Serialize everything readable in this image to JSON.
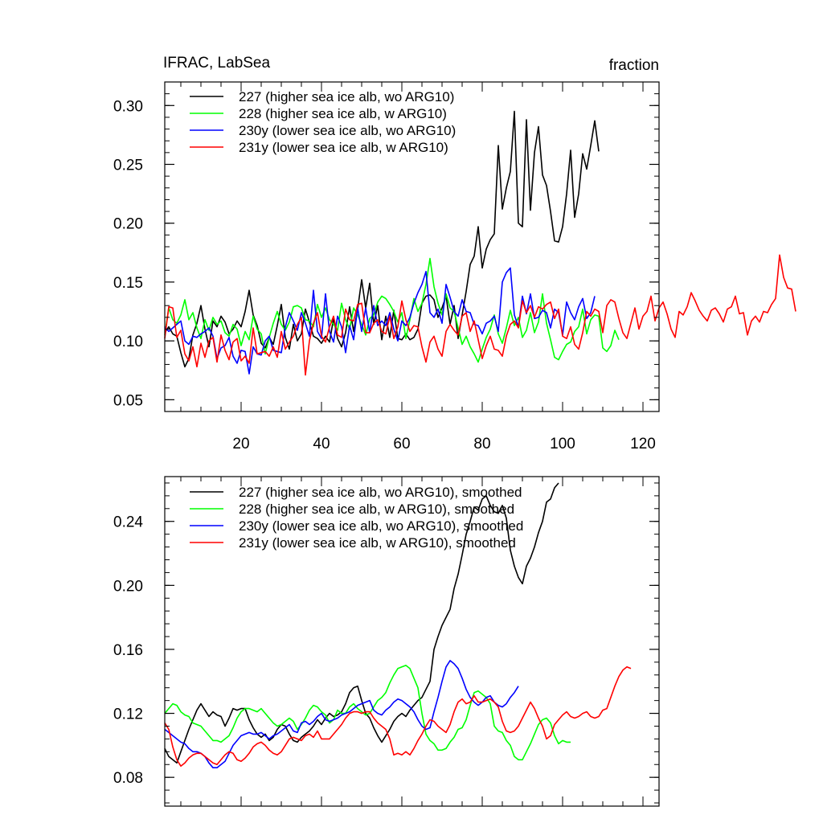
{
  "chart_data": [
    {
      "type": "line",
      "title": "IFRAC, LabSea",
      "units": "fraction",
      "xlim": [
        1,
        124
      ],
      "ylim": [
        0.04,
        0.32
      ],
      "xticks": [
        20,
        40,
        60,
        80,
        100,
        120
      ],
      "xtick_labels": [
        "20",
        "40",
        "60",
        "80",
        "100",
        "120"
      ],
      "yticks": [
        0.05,
        0.1,
        0.15,
        0.2,
        0.25,
        0.3
      ],
      "ytick_labels": [
        "0.05",
        "0.10",
        "0.15",
        "0.20",
        "0.25",
        "0.30"
      ],
      "legend_position": "top-left",
      "series": [
        {
          "name": "227 (higher sea ice alb, wo ARG10)",
          "color": "#000000",
          "x_start": 1,
          "values": [
            0.107,
            0.112,
            0.106,
            0.104,
            0.09,
            0.078,
            0.085,
            0.105,
            0.115,
            0.13,
            0.11,
            0.095,
            0.117,
            0.112,
            0.121,
            0.116,
            0.106,
            0.11,
            0.117,
            0.112,
            0.125,
            0.143,
            0.122,
            0.113,
            0.098,
            0.094,
            0.103,
            0.097,
            0.113,
            0.131,
            0.103,
            0.093,
            0.114,
            0.1,
            0.106,
            0.127,
            0.116,
            0.104,
            0.102,
            0.098,
            0.104,
            0.099,
            0.119,
            0.102,
            0.095,
            0.107,
            0.129,
            0.108,
            0.127,
            0.152,
            0.128,
            0.149,
            0.114,
            0.13,
            0.101,
            0.121,
            0.103,
            0.126,
            0.102,
            0.101,
            0.106,
            0.101,
            0.103,
            0.11,
            0.132,
            0.138,
            0.139,
            0.135,
            0.12,
            0.128,
            0.138,
            0.114,
            0.13,
            0.102,
            0.122,
            0.142,
            0.165,
            0.172,
            0.197,
            0.162,
            0.178,
            0.186,
            0.191,
            0.266,
            0.212,
            0.23,
            0.244,
            0.295,
            0.2,
            0.197,
            0.288,
            0.211,
            0.26,
            0.282,
            0.241,
            0.232,
            0.21,
            0.185,
            0.184,
            0.197,
            0.225,
            0.262,
            0.205,
            0.225,
            0.259,
            0.246,
            0.266,
            0.287,
            0.261
          ]
        },
        {
          "name": "228 (higher sea ice alb, w ARG10)",
          "color": "#00ff00",
          "x_start": 1,
          "values": [
            0.105,
            0.128,
            0.118,
            0.115,
            0.122,
            0.135,
            0.118,
            0.124,
            0.111,
            0.102,
            0.118,
            0.109,
            0.12,
            0.114,
            0.117,
            0.107,
            0.104,
            0.114,
            0.11,
            0.096,
            0.108,
            0.101,
            0.121,
            0.11,
            0.106,
            0.089,
            0.103,
            0.115,
            0.125,
            0.114,
            0.109,
            0.116,
            0.129,
            0.13,
            0.128,
            0.118,
            0.117,
            0.112,
            0.131,
            0.12,
            0.128,
            0.118,
            0.114,
            0.109,
            0.132,
            0.118,
            0.11,
            0.128,
            0.122,
            0.114,
            0.105,
            0.119,
            0.122,
            0.133,
            0.138,
            0.136,
            0.131,
            0.125,
            0.116,
            0.124,
            0.102,
            0.118,
            0.136,
            0.125,
            0.132,
            0.148,
            0.17,
            0.146,
            0.132,
            0.122,
            0.14,
            0.128,
            0.125,
            0.111,
            0.097,
            0.104,
            0.095,
            0.089,
            0.082,
            0.093,
            0.103,
            0.11,
            0.122,
            0.106,
            0.098,
            0.111,
            0.126,
            0.113,
            0.12,
            0.103,
            0.109,
            0.124,
            0.107,
            0.116,
            0.14,
            0.115,
            0.101,
            0.086,
            0.084,
            0.091,
            0.097,
            0.099,
            0.108,
            0.112,
            0.127,
            0.106,
            0.118,
            0.122,
            0.121,
            0.094,
            0.091,
            0.096,
            0.109,
            0.101
          ]
        },
        {
          "name": "230y (lower sea ice alb, wo ARG10)",
          "color": "#0000ff",
          "x_start": 1,
          "values": [
            0.112,
            0.108,
            0.111,
            0.114,
            0.117,
            0.1,
            0.097,
            0.104,
            0.103,
            0.106,
            0.108,
            0.111,
            0.104,
            0.085,
            0.094,
            0.096,
            0.103,
            0.087,
            0.081,
            0.092,
            0.091,
            0.072,
            0.095,
            0.089,
            0.088,
            0.1,
            0.104,
            0.092,
            0.091,
            0.09,
            0.112,
            0.124,
            0.117,
            0.109,
            0.124,
            0.115,
            0.104,
            0.143,
            0.108,
            0.102,
            0.14,
            0.108,
            0.099,
            0.121,
            0.112,
            0.09,
            0.113,
            0.101,
            0.128,
            0.108,
            0.128,
            0.107,
            0.13,
            0.113,
            0.117,
            0.113,
            0.124,
            0.11,
            0.1,
            0.117,
            0.113,
            0.12,
            0.132,
            0.141,
            0.148,
            0.159,
            0.124,
            0.12,
            0.127,
            0.115,
            0.148,
            0.137,
            0.125,
            0.121,
            0.135,
            0.125,
            0.124,
            0.114,
            0.113,
            0.106,
            0.115,
            0.117,
            0.121,
            0.108,
            0.15,
            0.158,
            0.162,
            0.122,
            0.112,
            0.138,
            0.123,
            0.14,
            0.119,
            0.12,
            0.126,
            0.124,
            0.111,
            0.127,
            0.124,
            0.105,
            0.133,
            0.124,
            0.118,
            0.129,
            0.136,
            0.119,
            0.124,
            0.138
          ]
        },
        {
          "name": "231y (lower sea ice alb, w ARG10)",
          "color": "#ff0000",
          "x_start": 1,
          "values": [
            0.102,
            0.129,
            0.128,
            0.103,
            0.109,
            0.089,
            0.083,
            0.095,
            0.078,
            0.098,
            0.086,
            0.1,
            0.103,
            0.082,
            0.105,
            0.092,
            0.084,
            0.099,
            0.102,
            0.083,
            0.087,
            0.081,
            0.111,
            0.089,
            0.09,
            0.091,
            0.087,
            0.095,
            0.086,
            0.108,
            0.093,
            0.099,
            0.104,
            0.114,
            0.12,
            0.071,
            0.1,
            0.115,
            0.124,
            0.104,
            0.099,
            0.112,
            0.121,
            0.105,
            0.103,
            0.127,
            0.118,
            0.117,
            0.131,
            0.132,
            0.107,
            0.107,
            0.115,
            0.118,
            0.108,
            0.106,
            0.121,
            0.102,
            0.112,
            0.134,
            0.118,
            0.108,
            0.113,
            0.112,
            0.095,
            0.082,
            0.099,
            0.104,
            0.093,
            0.087,
            0.108,
            0.114,
            0.109,
            0.105,
            0.121,
            0.124,
            0.108,
            0.117,
            0.101,
            0.085,
            0.096,
            0.104,
            0.093,
            0.092,
            0.087,
            0.104,
            0.114,
            0.117,
            0.111,
            0.134,
            0.124,
            0.13,
            0.12,
            0.129,
            0.127,
            0.131,
            0.133,
            0.119,
            0.127,
            0.104,
            0.102,
            0.112,
            0.097,
            0.093,
            0.107,
            0.125,
            0.121,
            0.127,
            0.125,
            0.107,
            0.13,
            0.135,
            0.133,
            0.119,
            0.107,
            0.102,
            0.115,
            0.128,
            0.11,
            0.121,
            0.125,
            0.138,
            0.117,
            0.128,
            0.133,
            0.123,
            0.11,
            0.103,
            0.125,
            0.122,
            0.129,
            0.141,
            0.134,
            0.126,
            0.121,
            0.117,
            0.126,
            0.128,
            0.123,
            0.116,
            0.127,
            0.129,
            0.138,
            0.123,
            0.124,
            0.105,
            0.117,
            0.121,
            0.116,
            0.125,
            0.124,
            0.131,
            0.136,
            0.173,
            0.154,
            0.145,
            0.144,
            0.125
          ]
        }
      ]
    },
    {
      "type": "line",
      "title": "",
      "xlim": [
        1,
        124
      ],
      "ylim": [
        0.062,
        0.268
      ],
      "xticks": [
        20,
        40,
        60,
        80,
        100,
        120
      ],
      "xtick_labels": [],
      "yticks": [
        0.08,
        0.12,
        0.16,
        0.2,
        0.24
      ],
      "ytick_labels": [
        "0.08",
        "0.12",
        "0.16",
        "0.20",
        "0.24"
      ],
      "legend_position": "top-left",
      "series": [
        {
          "name": "227 (higher sea ice alb, wo ARG10), smoothed",
          "color": "#000000",
          "x_start": 1,
          "values": [
            0.098,
            0.093,
            0.091,
            0.089,
            0.096,
            0.103,
            0.11,
            0.116,
            0.122,
            0.126,
            0.122,
            0.118,
            0.121,
            0.119,
            0.118,
            0.112,
            0.117,
            0.123,
            0.122,
            0.123,
            0.123,
            0.116,
            0.111,
            0.107,
            0.105,
            0.107,
            0.103,
            0.105,
            0.11,
            0.113,
            0.112,
            0.107,
            0.103,
            0.102,
            0.105,
            0.107,
            0.109,
            0.112,
            0.116,
            0.113,
            0.117,
            0.12,
            0.118,
            0.119,
            0.121,
            0.126,
            0.133,
            0.136,
            0.137,
            0.128,
            0.12,
            0.117,
            0.111,
            0.106,
            0.102,
            0.106,
            0.11,
            0.115,
            0.118,
            0.12,
            0.118,
            0.122,
            0.125,
            0.128,
            0.13,
            0.135,
            0.14,
            0.16,
            0.168,
            0.175,
            0.18,
            0.185,
            0.198,
            0.207,
            0.219,
            0.232,
            0.24,
            0.249,
            0.247,
            0.254,
            0.256,
            0.25,
            0.246,
            0.245,
            0.25,
            0.242,
            0.222,
            0.212,
            0.205,
            0.201,
            0.212,
            0.217,
            0.224,
            0.233,
            0.24,
            0.252,
            0.254,
            0.261,
            0.264
          ]
        },
        {
          "name": "228 (higher sea ice alb, w ARG10), smoothed",
          "color": "#00ff00",
          "x_start": 1,
          "values": [
            0.12,
            0.123,
            0.126,
            0.125,
            0.121,
            0.119,
            0.118,
            0.114,
            0.113,
            0.112,
            0.109,
            0.106,
            0.103,
            0.103,
            0.102,
            0.104,
            0.106,
            0.111,
            0.117,
            0.121,
            0.123,
            0.123,
            0.122,
            0.121,
            0.123,
            0.12,
            0.117,
            0.114,
            0.112,
            0.113,
            0.115,
            0.117,
            0.115,
            0.11,
            0.113,
            0.117,
            0.122,
            0.125,
            0.124,
            0.121,
            0.119,
            0.114,
            0.116,
            0.122,
            0.12,
            0.12,
            0.124,
            0.126,
            0.123,
            0.121,
            0.119,
            0.12,
            0.124,
            0.128,
            0.13,
            0.133,
            0.139,
            0.144,
            0.148,
            0.149,
            0.15,
            0.148,
            0.142,
            0.136,
            0.12,
            0.107,
            0.103,
            0.101,
            0.097,
            0.097,
            0.098,
            0.102,
            0.105,
            0.11,
            0.111,
            0.116,
            0.125,
            0.133,
            0.134,
            0.132,
            0.13,
            0.126,
            0.112,
            0.109,
            0.108,
            0.103,
            0.1,
            0.093,
            0.091,
            0.091,
            0.096,
            0.101,
            0.107,
            0.113,
            0.116,
            0.117,
            0.114,
            0.106,
            0.101,
            0.103,
            0.102,
            0.102
          ]
        },
        {
          "name": "230y (lower sea ice alb, wo ARG10), smoothed",
          "color": "#0000ff",
          "x_start": 1,
          "values": [
            0.11,
            0.108,
            0.106,
            0.104,
            0.102,
            0.101,
            0.098,
            0.096,
            0.096,
            0.095,
            0.093,
            0.089,
            0.086,
            0.086,
            0.088,
            0.09,
            0.095,
            0.1,
            0.103,
            0.106,
            0.107,
            0.108,
            0.107,
            0.107,
            0.108,
            0.106,
            0.104,
            0.106,
            0.107,
            0.109,
            0.111,
            0.113,
            0.109,
            0.108,
            0.114,
            0.115,
            0.113,
            0.115,
            0.118,
            0.12,
            0.116,
            0.115,
            0.116,
            0.117,
            0.119,
            0.12,
            0.121,
            0.123,
            0.125,
            0.126,
            0.127,
            0.128,
            0.122,
            0.12,
            0.119,
            0.122,
            0.124,
            0.127,
            0.129,
            0.128,
            0.126,
            0.124,
            0.121,
            0.116,
            0.112,
            0.11,
            0.111,
            0.121,
            0.13,
            0.14,
            0.149,
            0.153,
            0.151,
            0.148,
            0.142,
            0.135,
            0.13,
            0.127,
            0.125,
            0.127,
            0.13,
            0.131,
            0.127,
            0.125,
            0.124,
            0.126,
            0.13,
            0.133,
            0.137
          ]
        },
        {
          "name": "231y (lower sea ice alb, w ARG10), smoothed",
          "color": "#ff0000",
          "x_start": 1,
          "values": [
            0.114,
            0.11,
            0.099,
            0.091,
            0.087,
            0.089,
            0.092,
            0.094,
            0.095,
            0.095,
            0.093,
            0.091,
            0.089,
            0.088,
            0.091,
            0.094,
            0.096,
            0.095,
            0.091,
            0.09,
            0.092,
            0.095,
            0.099,
            0.101,
            0.102,
            0.1,
            0.097,
            0.095,
            0.094,
            0.096,
            0.1,
            0.104,
            0.105,
            0.104,
            0.103,
            0.106,
            0.107,
            0.105,
            0.109,
            0.104,
            0.104,
            0.104,
            0.107,
            0.11,
            0.113,
            0.117,
            0.12,
            0.121,
            0.121,
            0.12,
            0.121,
            0.121,
            0.117,
            0.114,
            0.112,
            0.11,
            0.104,
            0.094,
            0.095,
            0.094,
            0.096,
            0.094,
            0.098,
            0.103,
            0.107,
            0.112,
            0.116,
            0.115,
            0.112,
            0.11,
            0.108,
            0.113,
            0.121,
            0.127,
            0.129,
            0.126,
            0.127,
            0.131,
            0.127,
            0.127,
            0.128,
            0.129,
            0.127,
            0.124,
            0.115,
            0.109,
            0.108,
            0.109,
            0.112,
            0.117,
            0.122,
            0.127,
            0.123,
            0.117,
            0.112,
            0.104,
            0.106,
            0.113,
            0.116,
            0.119,
            0.121,
            0.118,
            0.117,
            0.118,
            0.12,
            0.121,
            0.118,
            0.117,
            0.118,
            0.122,
            0.123,
            0.13,
            0.137,
            0.143,
            0.147,
            0.149,
            0.148
          ]
        }
      ]
    }
  ]
}
